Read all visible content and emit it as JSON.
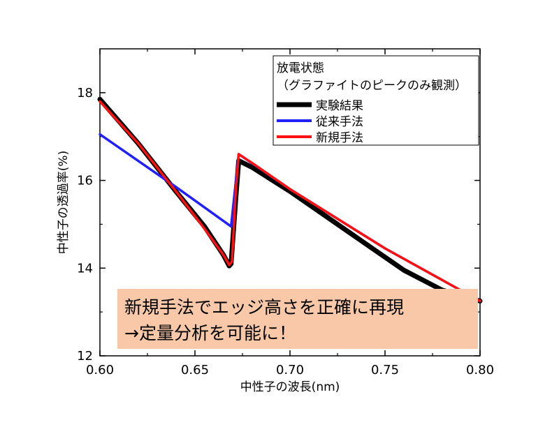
{
  "chart_data": {
    "type": "line",
    "xlabel": "中性子の波長(nm)",
    "ylabel": "中性子の透過率(%)",
    "xlim": [
      0.6,
      0.8
    ],
    "ylim": [
      12,
      19
    ],
    "x_ticks": [
      "0.60",
      "0.65",
      "0.70",
      "0.75",
      "0.80"
    ],
    "y_ticks": [
      "12",
      "14",
      "16",
      "18"
    ],
    "grid": false,
    "legend": {
      "title_line1": "放電状態",
      "title_line2": "（グラファイトのピークのみ観測）",
      "placement": "top-right"
    },
    "series": [
      {
        "name": "実験結果",
        "color": "#000000",
        "points": [
          [
            0.6,
            17.85
          ],
          [
            0.62,
            16.85
          ],
          [
            0.64,
            15.75
          ],
          [
            0.655,
            14.95
          ],
          [
            0.665,
            14.3
          ],
          [
            0.668,
            14.05
          ],
          [
            0.669,
            14.1
          ],
          [
            0.6715,
            15.6
          ],
          [
            0.673,
            16.45
          ],
          [
            0.68,
            16.3
          ],
          [
            0.7,
            15.75
          ],
          [
            0.72,
            15.15
          ],
          [
            0.74,
            14.55
          ],
          [
            0.76,
            13.95
          ],
          [
            0.78,
            13.5
          ],
          [
            0.8,
            13.25
          ]
        ]
      },
      {
        "name": "従来手法",
        "color": "#2020ff",
        "points": [
          [
            0.6,
            17.05
          ],
          [
            0.64,
            15.85
          ],
          [
            0.669,
            14.95
          ],
          [
            0.673,
            16.6
          ],
          [
            0.7,
            15.8
          ],
          [
            0.75,
            14.45
          ],
          [
            0.8,
            13.25
          ]
        ]
      },
      {
        "name": "新規手法",
        "color": "#ff1010",
        "points": [
          [
            0.6,
            17.8
          ],
          [
            0.62,
            16.85
          ],
          [
            0.64,
            15.75
          ],
          [
            0.655,
            14.9
          ],
          [
            0.665,
            14.3
          ],
          [
            0.668,
            14.07
          ],
          [
            0.6695,
            14.15
          ],
          [
            0.6715,
            15.8
          ],
          [
            0.673,
            16.6
          ],
          [
            0.68,
            16.4
          ],
          [
            0.7,
            15.8
          ],
          [
            0.75,
            14.45
          ],
          [
            0.8,
            13.25
          ]
        ]
      }
    ],
    "annotation": {
      "line1": "新規手法でエッジ高さを正確に再現",
      "line2": "→定量分析を可能に！",
      "background": "#f8c8a8"
    }
  }
}
